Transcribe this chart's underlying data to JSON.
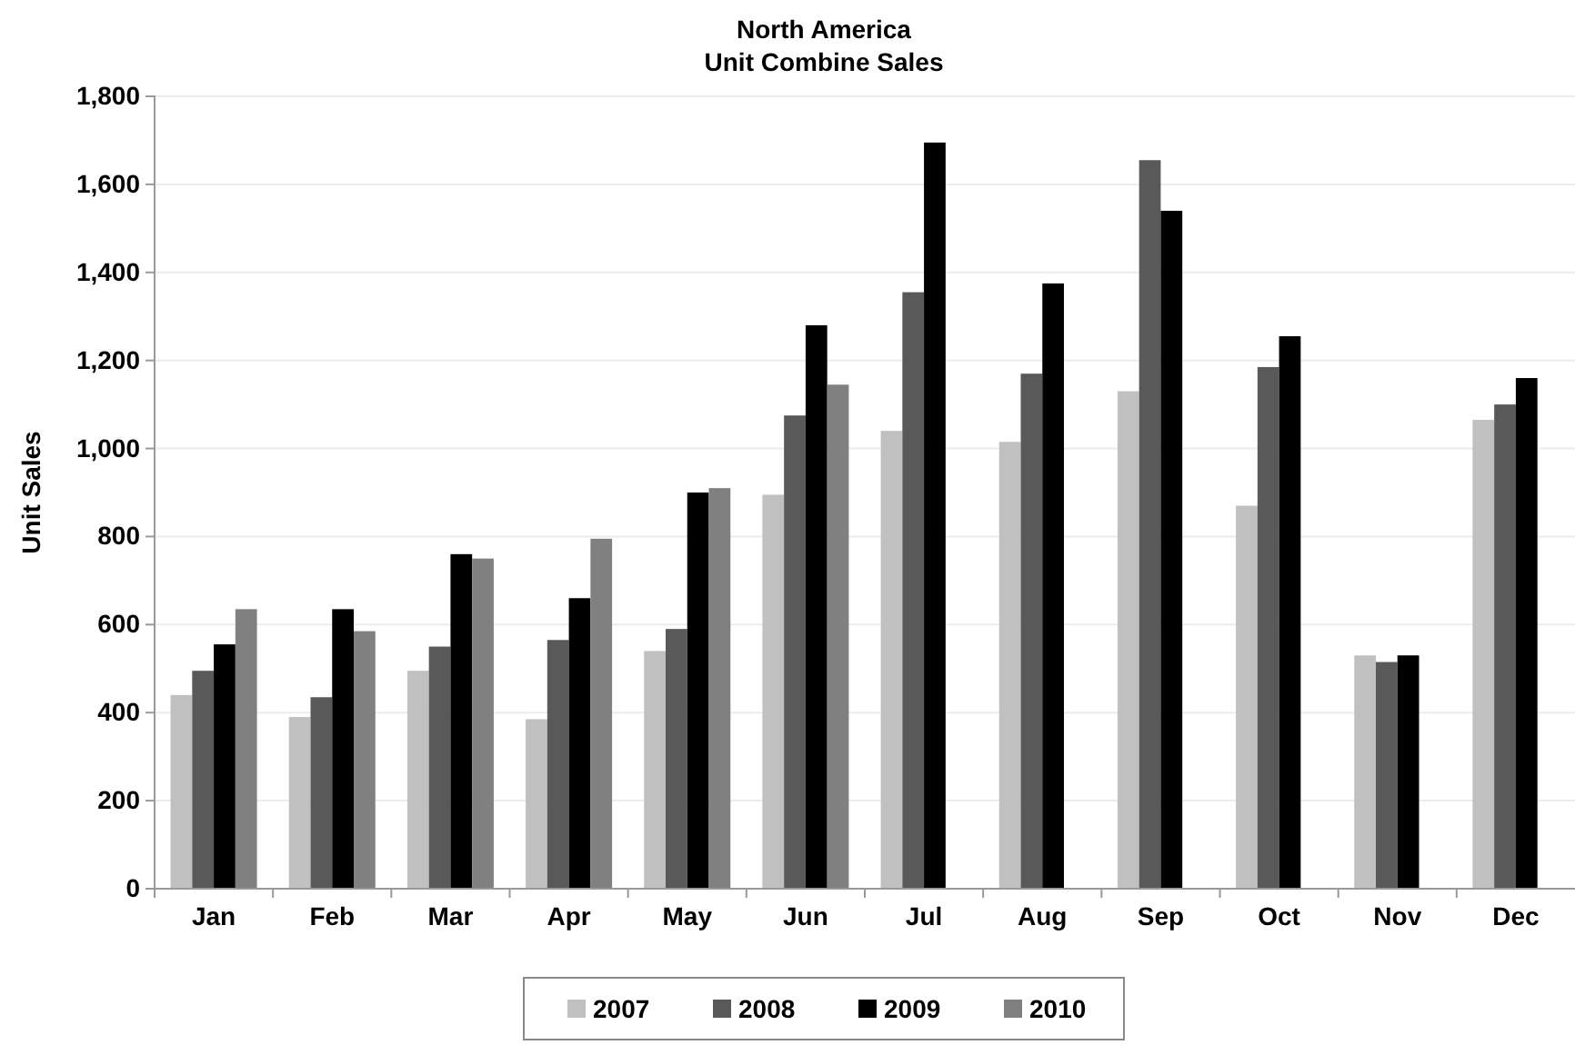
{
  "chart_data": {
    "type": "bar",
    "title": "North America",
    "subtitle": "Unit Combine Sales",
    "ylabel": "Unit Sales",
    "categories": [
      "Jan",
      "Feb",
      "Mar",
      "Apr",
      "May",
      "Jun",
      "Jul",
      "Aug",
      "Sep",
      "Oct",
      "Nov",
      "Dec"
    ],
    "series": [
      {
        "name": "2007",
        "color": "#c0c0c0",
        "values": [
          440,
          390,
          495,
          385,
          540,
          895,
          1040,
          1015,
          1130,
          870,
          530,
          1065
        ]
      },
      {
        "name": "2008",
        "color": "#595959",
        "values": [
          495,
          435,
          550,
          565,
          590,
          1075,
          1355,
          1170,
          1655,
          1185,
          515,
          1100
        ]
      },
      {
        "name": "2009",
        "color": "#000000",
        "values": [
          555,
          635,
          760,
          660,
          900,
          1280,
          1695,
          1375,
          1540,
          1255,
          530,
          1160
        ]
      },
      {
        "name": "2010",
        "color": "#808080",
        "values": [
          635,
          585,
          750,
          795,
          910,
          1145,
          null,
          null,
          null,
          null,
          null,
          null
        ]
      }
    ],
    "ylim": [
      0,
      1800
    ],
    "yticks": [
      {
        "value": 0,
        "label": "0"
      },
      {
        "value": 200,
        "label": "200"
      },
      {
        "value": 400,
        "label": "400"
      },
      {
        "value": 600,
        "label": "600"
      },
      {
        "value": 800,
        "label": "800"
      },
      {
        "value": 1000,
        "label": "1,000"
      },
      {
        "value": 1200,
        "label": "1,200"
      },
      {
        "value": 1400,
        "label": "1,400"
      },
      {
        "value": 1600,
        "label": "1,600"
      },
      {
        "value": 1800,
        "label": "1,800"
      }
    ],
    "grid": "y",
    "legend": "bottom"
  }
}
